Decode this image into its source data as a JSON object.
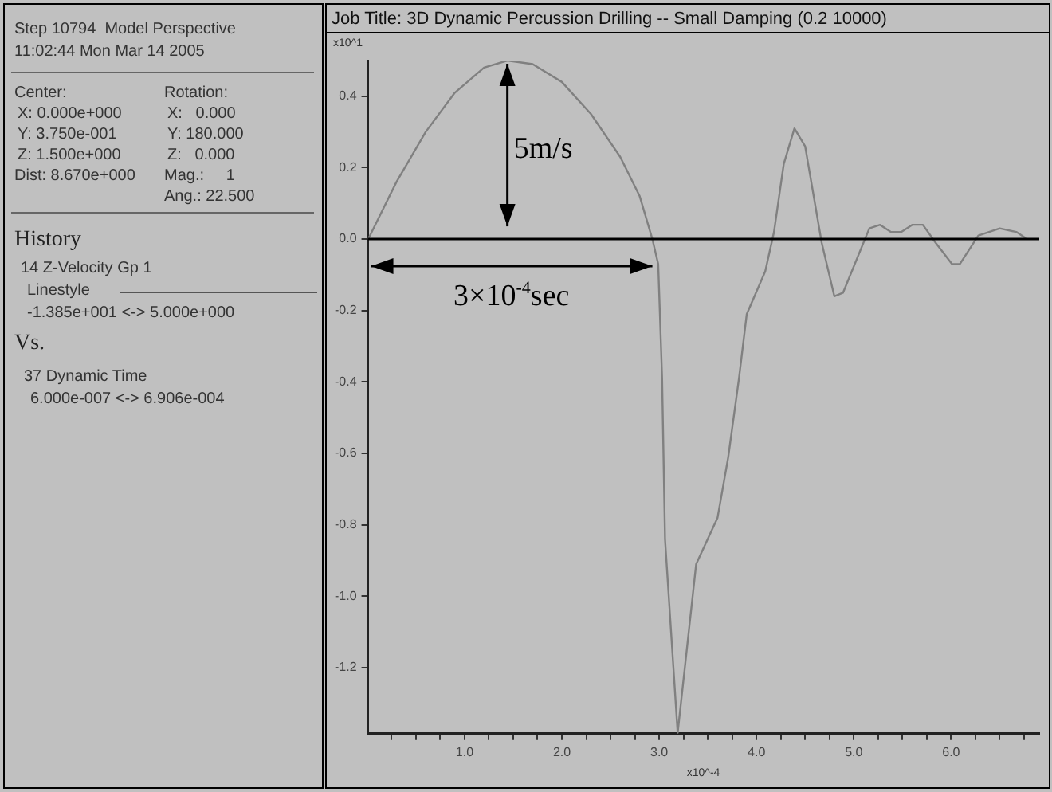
{
  "chart_data": {
    "type": "line",
    "title": "Job Title: 3D Dynamic Percussion Drilling -- Small Damping (0.2 10000)",
    "xlabel": "x10^-4",
    "ylabel": "x10^1",
    "x": [
      0.01,
      0.3,
      0.6,
      0.9,
      1.2,
      1.44,
      1.7,
      2.0,
      2.3,
      2.6,
      2.8,
      2.93,
      2.99,
      3.03,
      3.06,
      3.19,
      3.38,
      3.6,
      3.71,
      3.82,
      3.9,
      4.09,
      4.18,
      4.28,
      4.39,
      4.5,
      4.67,
      4.8,
      4.89,
      5.16,
      5.27,
      5.38,
      5.49,
      5.6,
      5.71,
      5.84,
      6.01,
      6.09,
      6.28,
      6.5,
      6.67,
      6.78
    ],
    "series": [
      {
        "color": "#808080",
        "values": [
          0,
          0.16,
          0.3,
          0.41,
          0.48,
          0.5,
          0.49,
          0.44,
          0.35,
          0.23,
          0.12,
          0,
          -0.07,
          -0.39,
          -0.84,
          -1.383,
          -0.91,
          -0.78,
          -0.61,
          -0.39,
          -0.21,
          -0.09,
          0.02,
          0.21,
          0.31,
          0.26,
          -0.01,
          -0.16,
          -0.15,
          0.03,
          0.04,
          0.02,
          0.02,
          0.04,
          0.04,
          -0.01,
          -0.07,
          -0.07,
          0.01,
          0.03,
          0.02,
          0
        ]
      }
    ],
    "xlim": [
      0.006,
      6.906
    ],
    "ylim": [
      -1.385,
      0.5
    ],
    "xticks": [
      {
        "value": 0.25,
        "label": null
      },
      {
        "value": 0.5,
        "label": null
      },
      {
        "value": 0.75,
        "label": null
      },
      {
        "value": 1,
        "label": "1.0"
      },
      {
        "value": 1.25,
        "label": null
      },
      {
        "value": 1.5,
        "label": null
      },
      {
        "value": 1.75,
        "label": null
      },
      {
        "value": 2,
        "label": "2.0"
      },
      {
        "value": 2.25,
        "label": null
      },
      {
        "value": 2.5,
        "label": null
      },
      {
        "value": 2.75,
        "label": null
      },
      {
        "value": 3,
        "label": "3.0"
      },
      {
        "value": 3.25,
        "label": null
      },
      {
        "value": 3.5,
        "label": null
      },
      {
        "value": 3.75,
        "label": null
      },
      {
        "value": 4,
        "label": "4.0"
      },
      {
        "value": 4.25,
        "label": null
      },
      {
        "value": 4.5,
        "label": null
      },
      {
        "value": 4.75,
        "label": null
      },
      {
        "value": 5,
        "label": "5.0"
      },
      {
        "value": 5.25,
        "label": null
      },
      {
        "value": 5.5,
        "label": null
      },
      {
        "value": 5.75,
        "label": null
      },
      {
        "value": 6,
        "label": "6.0"
      },
      {
        "value": 6.25,
        "label": null
      },
      {
        "value": 6.5,
        "label": null
      },
      {
        "value": 6.75,
        "label": null
      }
    ],
    "yticks": [
      {
        "value": 0.4,
        "label": "0.4"
      },
      {
        "value": 0.2,
        "label": "0.2"
      },
      {
        "value": 0,
        "label": "0.0"
      },
      {
        "value": -0.2,
        "label": "-0.2"
      },
      {
        "value": -0.4,
        "label": "-0.4"
      },
      {
        "value": -0.6,
        "label": "-0.6"
      },
      {
        "value": -0.8,
        "label": "-0.8"
      },
      {
        "value": -1,
        "label": "-1.0"
      },
      {
        "value": -1.2,
        "label": "-1.2"
      }
    ],
    "ref_lines": [
      {
        "axis": "y",
        "value": 0,
        "color": "#000000"
      }
    ],
    "grid": false,
    "legend": false,
    "marker": "none",
    "line_style": "solid",
    "annotations": [
      "Step 10794  Model Perspective",
      "11:02:44 Mon Mar 14 2005",
      "Center:",
      "X: 0.000e+000",
      "Y: 3.750e-001",
      "Z: 1.500e+000",
      "Dist: 8.670e+000",
      "Rotation:",
      "X:   0.000",
      "Y: 180.000",
      "Z:   0.000",
      "Mag.:     1",
      "Ang.: 22.500",
      "History",
      "14 Z-Velocity Gp 1",
      "Linestyle",
      "-1.385e+001 <-> 5.000e+000",
      "Vs.",
      "37 Dynamic Time",
      "6.000e-007 <-> 6.906e-004",
      "5m/s",
      "3×10$^{-4}$sec"
    ]
  }
}
